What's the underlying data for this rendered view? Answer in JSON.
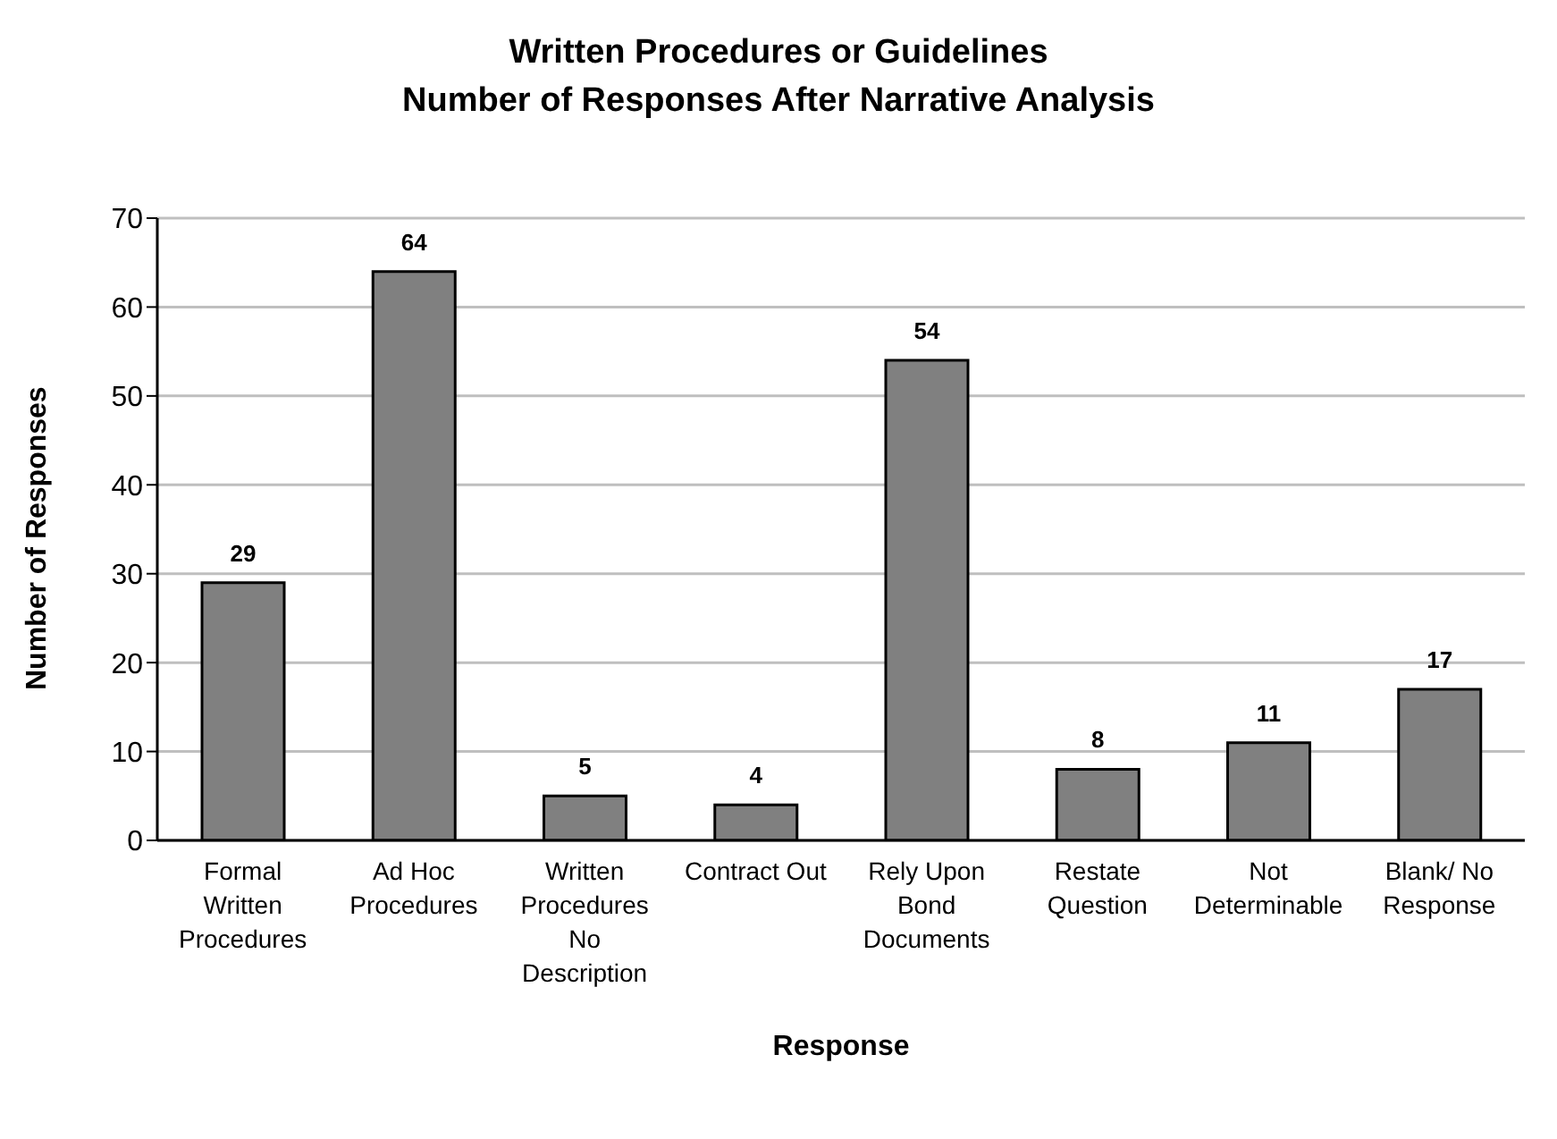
{
  "chart_data": {
    "type": "bar",
    "title": "Written Procedures or Guidelines",
    "subtitle": "Number of Responses After Narrative Analysis",
    "xlabel": "Response",
    "ylabel": "Number of Responses",
    "categories": [
      "Formal Written Procedures",
      "Ad Hoc Procedures",
      "Written Procedures No Description",
      "Contract Out",
      "Rely Upon Bond Documents",
      "Restate Question",
      "Not Determinable",
      "Blank/ No Response"
    ],
    "values": [
      29,
      64,
      5,
      4,
      54,
      8,
      11,
      17
    ],
    "color": "#808080",
    "ylim": [
      0,
      70
    ],
    "yticks": [
      0,
      10,
      20,
      30,
      40,
      50,
      60,
      70
    ],
    "grid": "y",
    "data_labels": true
  }
}
